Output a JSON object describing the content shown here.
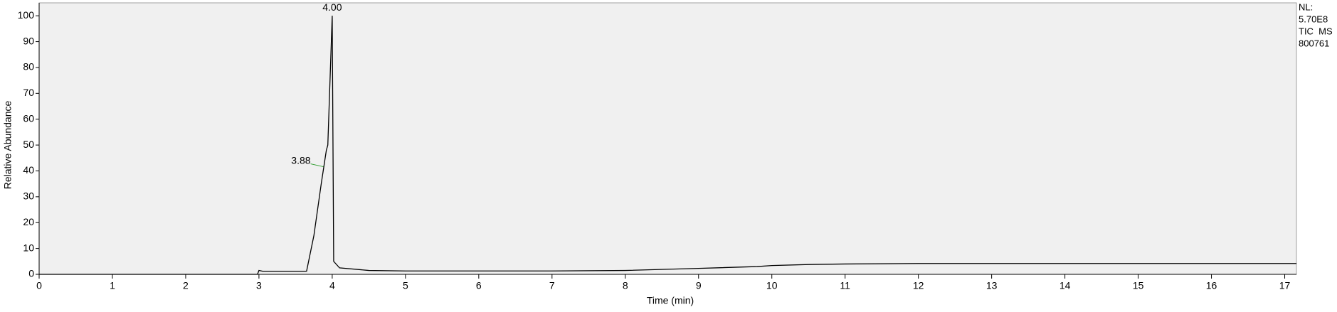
{
  "chart_data": {
    "type": "line",
    "x_label": "Time (min)",
    "y_label": "Relative Abundance",
    "x": [
      0,
      2.98,
      3.0,
      3.05,
      3.65,
      3.75,
      3.85,
      3.92,
      3.94,
      3.97,
      4.0,
      4.02,
      4.1,
      4.5,
      5,
      7,
      8,
      9,
      9.8,
      10,
      10.5,
      11,
      12,
      17.16
    ],
    "values": [
      0,
      0,
      1.5,
      1.2,
      1.2,
      15,
      35,
      48,
      50,
      75,
      100,
      5,
      2.5,
      1.5,
      1.3,
      1.3,
      1.5,
      2.3,
      3,
      3.4,
      3.8,
      4,
      4.2,
      4.2
    ],
    "color": "#000000",
    "xlim": [
      0,
      17.16
    ],
    "ylim": [
      0,
      105
    ],
    "xticks": [
      0,
      1,
      2,
      3,
      4,
      5,
      6,
      7,
      8,
      9,
      10,
      11,
      12,
      13,
      14,
      15,
      16,
      17
    ],
    "yticks": [
      0,
      10,
      20,
      30,
      40,
      50,
      60,
      70,
      80,
      90,
      100
    ],
    "annotations": [
      {
        "label": "4.00",
        "x": 4.0,
        "y": 100
      },
      {
        "label": "3.88",
        "x": 3.88,
        "y": 43
      }
    ],
    "info": [
      "NL:",
      "5.70E8",
      "TIC  MS",
      "800761"
    ]
  }
}
